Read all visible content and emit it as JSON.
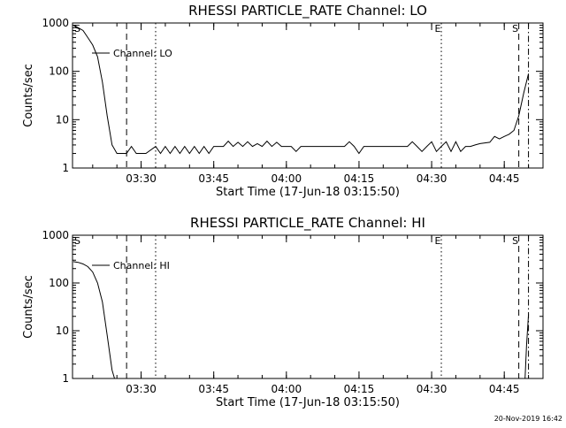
{
  "footer": {
    "timestamp": "20-Nov-2019 16:42"
  },
  "chart_data": [
    {
      "type": "line",
      "title": "RHESSI PARTICLE_RATE Channel: LO",
      "xlabel": "Start Time (17-Jun-18 03:15:50)",
      "ylabel": "Counts/sec",
      "y_scale": "log",
      "ylim": [
        1,
        1000
      ],
      "x_ticks": [
        "03:30",
        "03:45",
        "04:00",
        "04:15",
        "04:30",
        "04:45"
      ],
      "y_ticks": [
        "1",
        "10",
        "100",
        "1000"
      ],
      "legend": {
        "label": "Channel: LO",
        "placement": "top-left"
      },
      "markers": [
        {
          "label": "S",
          "time": "03:15:50",
          "style": "none"
        },
        {
          "label": "",
          "time": "03:27",
          "style": "dashed"
        },
        {
          "label": "",
          "time": "03:33",
          "style": "dotted"
        },
        {
          "label": "E",
          "time": "04:32",
          "style": "dotted"
        },
        {
          "label": "S",
          "time": "04:48",
          "style": "dashed"
        },
        {
          "label": "",
          "time": "04:50",
          "style": "dashdot"
        }
      ],
      "series": [
        {
          "name": "Channel: LO",
          "points": [
            [
              "03:16",
              900
            ],
            [
              "03:17",
              800
            ],
            [
              "03:18",
              700
            ],
            [
              "03:19",
              500
            ],
            [
              "03:20",
              350
            ],
            [
              "03:21",
              200
            ],
            [
              "03:22",
              60
            ],
            [
              "03:23",
              12
            ],
            [
              "03:24",
              3
            ],
            [
              "03:25",
              2
            ],
            [
              "03:27",
              2
            ],
            [
              "03:28",
              2.8
            ],
            [
              "03:29",
              2
            ],
            [
              "03:30",
              2
            ],
            [
              "03:31",
              2
            ],
            [
              "03:33",
              2.8
            ],
            [
              "03:34",
              2
            ],
            [
              "03:35",
              2.8
            ],
            [
              "03:36",
              2
            ],
            [
              "03:37",
              2.8
            ],
            [
              "03:38",
              2
            ],
            [
              "03:39",
              2.8
            ],
            [
              "03:40",
              2
            ],
            [
              "03:41",
              2.8
            ],
            [
              "03:42",
              2
            ],
            [
              "03:43",
              2.8
            ],
            [
              "03:44",
              2
            ],
            [
              "03:45",
              2.8
            ],
            [
              "03:46",
              2.8
            ],
            [
              "03:47",
              2.8
            ],
            [
              "03:48",
              3.6
            ],
            [
              "03:49",
              2.8
            ],
            [
              "03:50",
              3.4
            ],
            [
              "03:51",
              2.8
            ],
            [
              "03:52",
              3.5
            ],
            [
              "03:53",
              2.8
            ],
            [
              "03:54",
              3.2
            ],
            [
              "03:55",
              2.8
            ],
            [
              "03:56",
              3.6
            ],
            [
              "03:57",
              2.8
            ],
            [
              "03:58",
              3.4
            ],
            [
              "03:59",
              2.8
            ],
            [
              "04:00",
              2.8
            ],
            [
              "04:01",
              2.8
            ],
            [
              "04:02",
              2.2
            ],
            [
              "04:03",
              2.8
            ],
            [
              "04:05",
              2.8
            ],
            [
              "04:08",
              2.8
            ],
            [
              "04:10",
              2.8
            ],
            [
              "04:12",
              2.8
            ],
            [
              "04:13",
              3.5
            ],
            [
              "04:14",
              2.8
            ],
            [
              "04:15",
              2
            ],
            [
              "04:16",
              2.8
            ],
            [
              "04:18",
              2.8
            ],
            [
              "04:20",
              2.8
            ],
            [
              "04:22",
              2.8
            ],
            [
              "04:25",
              2.8
            ],
            [
              "04:26",
              3.5
            ],
            [
              "04:27",
              2.8
            ],
            [
              "04:28",
              2.2
            ],
            [
              "04:29",
              2.8
            ],
            [
              "04:30",
              3.5
            ],
            [
              "04:31",
              2.2
            ],
            [
              "04:32",
              2.8
            ],
            [
              "04:33",
              3.5
            ],
            [
              "04:34",
              2.2
            ],
            [
              "04:35",
              3.5
            ],
            [
              "04:36",
              2.2
            ],
            [
              "04:37",
              2.8
            ],
            [
              "04:38",
              2.8
            ],
            [
              "04:39",
              3
            ],
            [
              "04:40",
              3.2
            ],
            [
              "04:42",
              3.4
            ],
            [
              "04:43",
              4.5
            ],
            [
              "04:44",
              4
            ],
            [
              "04:45",
              4.5
            ],
            [
              "04:46",
              5
            ],
            [
              "04:47",
              6
            ],
            [
              "04:48",
              12
            ],
            [
              "04:49",
              35
            ],
            [
              "04:50",
              90
            ]
          ]
        }
      ]
    },
    {
      "type": "line",
      "title": "RHESSI PARTICLE_RATE Channel: HI",
      "xlabel": "Start Time (17-Jun-18 03:15:50)",
      "ylabel": "Counts/sec",
      "y_scale": "log",
      "ylim": [
        1,
        1000
      ],
      "x_ticks": [
        "03:30",
        "03:45",
        "04:00",
        "04:15",
        "04:30",
        "04:45"
      ],
      "y_ticks": [
        "1",
        "10",
        "100",
        "1000"
      ],
      "legend": {
        "label": "Channel: HI",
        "placement": "top-left"
      },
      "markers": [
        {
          "label": "S",
          "time": "03:15:50",
          "style": "none"
        },
        {
          "label": "",
          "time": "03:27",
          "style": "dashed"
        },
        {
          "label": "",
          "time": "03:33",
          "style": "dotted"
        },
        {
          "label": "E",
          "time": "04:32",
          "style": "dotted"
        },
        {
          "label": "S",
          "time": "04:48",
          "style": "dashed"
        },
        {
          "label": "",
          "time": "04:50",
          "style": "dashdot"
        }
      ],
      "series": [
        {
          "name": "Channel: HI",
          "segments": [
            [
              [
                "03:16",
                280
              ],
              [
                "03:17",
                270
              ],
              [
                "03:18",
                250
              ],
              [
                "03:19",
                220
              ],
              [
                "03:20",
                170
              ],
              [
                "03:21",
                100
              ],
              [
                "03:22",
                40
              ],
              [
                "03:23",
                8
              ],
              [
                "03:24",
                1.5
              ],
              [
                "03:24.5",
                1
              ]
            ],
            [
              [
                "04:49.3",
                1
              ],
              [
                "04:49.6",
                5
              ],
              [
                "04:50",
                22
              ]
            ]
          ]
        }
      ]
    }
  ]
}
